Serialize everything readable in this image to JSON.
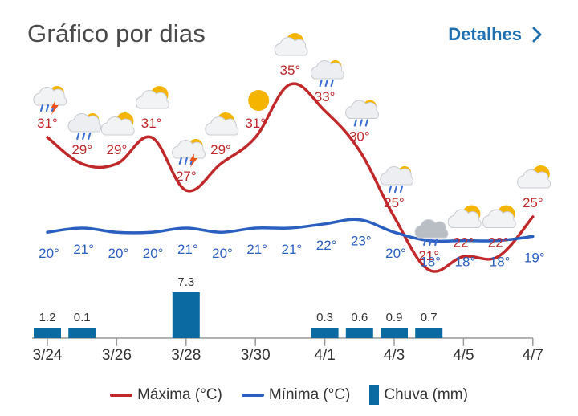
{
  "header": {
    "title": "Gráfico por dias",
    "details_label": "Detalhes"
  },
  "colors": {
    "max": "#c0282a",
    "min": "#2b5fbf",
    "rain": "#0a6aa1",
    "link": "#1e6fb0"
  },
  "legend": {
    "max_label": "Máxima (°C)",
    "min_label": "Mínima (°C)",
    "rain_label": "Chuva (mm)"
  },
  "chart_data": {
    "type": "line",
    "x": [
      "3/24",
      "3/25",
      "3/26",
      "3/27",
      "3/28",
      "3/29",
      "3/30",
      "3/31",
      "4/1",
      "4/2",
      "4/3",
      "4/4",
      "4/5",
      "4/6",
      "4/7"
    ],
    "x_tick_labels": [
      "3/24",
      "3/26",
      "3/28",
      "3/30",
      "4/1",
      "4/3",
      "4/5",
      "4/7"
    ],
    "series": [
      {
        "name": "Máxima (°C)",
        "values": [
          31,
          29,
          29,
          31,
          27,
          29,
          31,
          35,
          33,
          30,
          25,
          21,
          22,
          22,
          25
        ]
      },
      {
        "name": "Mínima (°C)",
        "values": [
          20,
          21,
          20,
          20,
          21,
          20,
          21,
          21,
          22,
          23,
          20,
          18,
          18,
          18,
          19
        ]
      },
      {
        "name": "Chuva (mm)",
        "type": "bar",
        "values": [
          1.2,
          0.1,
          null,
          null,
          7.3,
          null,
          null,
          null,
          0.3,
          0.6,
          0.9,
          0.7,
          null,
          null,
          null
        ]
      }
    ],
    "rain_labels": [
      "1.2",
      "0.1",
      "",
      "",
      "7.3",
      "",
      "",
      "",
      "0.3",
      "0.6",
      "0.9",
      "0.7",
      "",
      "",
      ""
    ],
    "max_labels": [
      "31°",
      "29°",
      "29°",
      "31°",
      "27°",
      "29°",
      "31°",
      "35°",
      "33°",
      "30°",
      "25°",
      "21°",
      "22°",
      "22°",
      "25°"
    ],
    "min_labels": [
      "20°",
      "21°",
      "20°",
      "20°",
      "21°",
      "20°",
      "21°",
      "21°",
      "22°",
      "23°",
      "20°",
      "18°",
      "18°",
      "18°",
      "19°"
    ],
    "icons": [
      "storm-icon",
      "rain-cloud-icon",
      "partly-sunny-icon",
      "partly-sunny-icon",
      "storm-icon",
      "cloud-sun-icon",
      "sun-icon",
      "cloud-sun-icon",
      "rain-cloud-icon",
      "rain-cloud-icon",
      "rain-cloud-icon",
      "dark-rain-cloud-icon",
      "partly-sunny-icon",
      "partly-sunny-icon",
      "partly-sunny-icon"
    ]
  }
}
